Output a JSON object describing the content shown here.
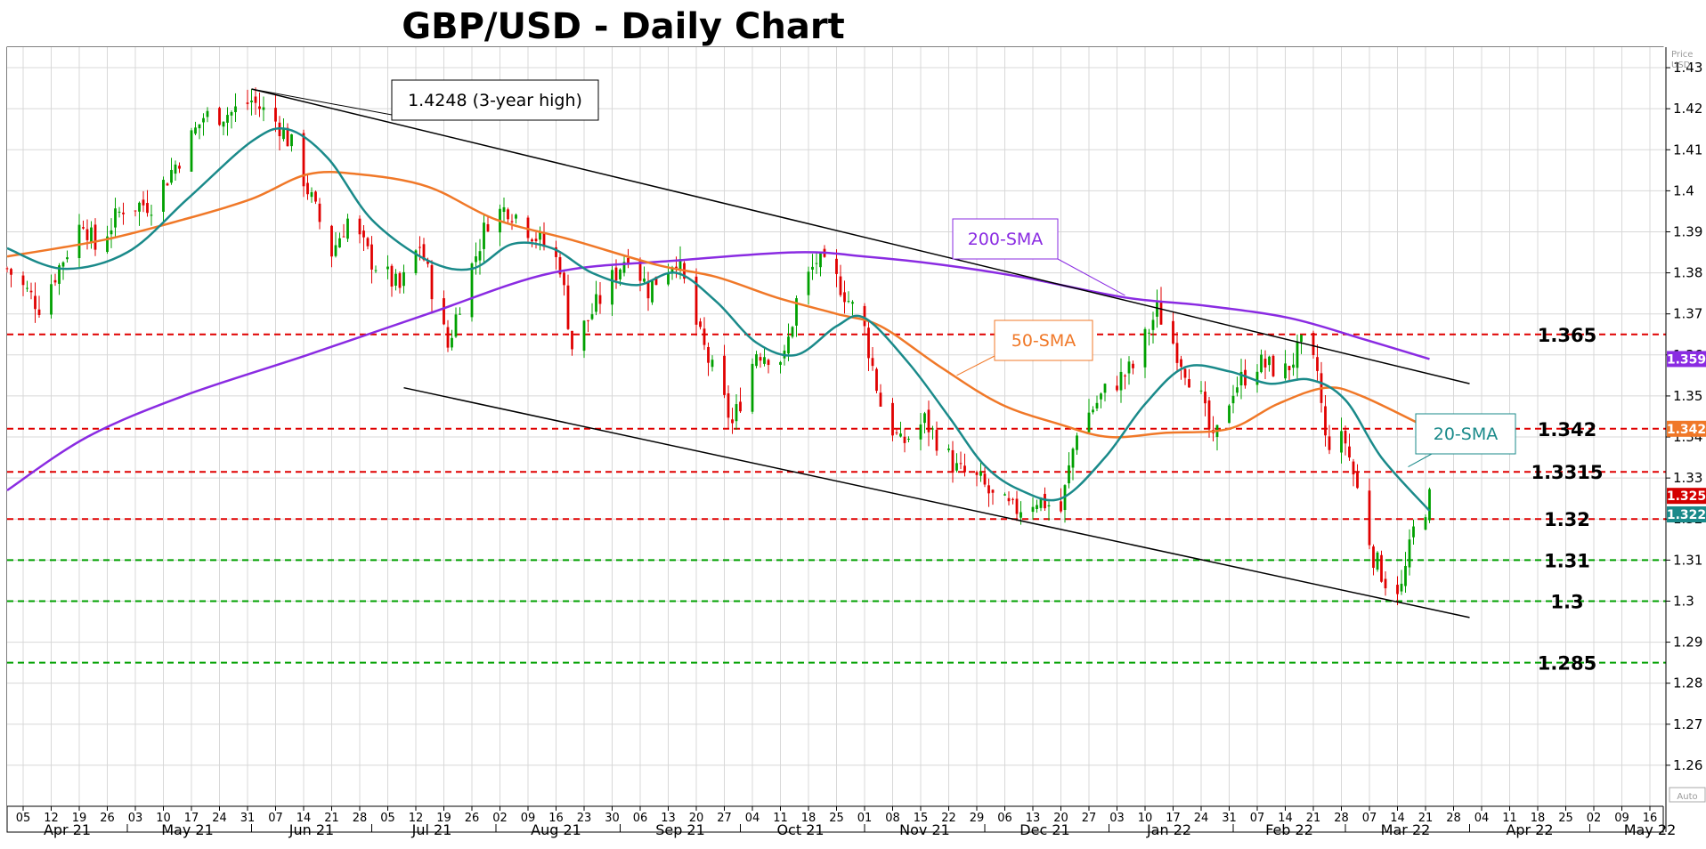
{
  "chart_data": {
    "type": "line",
    "title": "GBP/USD - Daily Chart",
    "y_unit": "Price USD",
    "auto_label": "Auto",
    "ylim": [
      1.25,
      1.435
    ],
    "xlim": [
      "2021-04-01",
      "2022-05-20"
    ],
    "grid": true,
    "y_ticks": [
      "1.26",
      "1.27",
      "1.28",
      "1.29",
      "1.3",
      "1.31",
      "1.32",
      "1.33",
      "1.34",
      "1.35",
      "1.36",
      "1.37",
      "1.38",
      "1.39",
      "1.4",
      "1.41",
      "1.42",
      "1.43"
    ],
    "x_ticks": [
      {
        "d": "2021-04-05",
        "l": "05"
      },
      {
        "d": "2021-04-12",
        "l": "12"
      },
      {
        "d": "2021-04-19",
        "l": "19"
      },
      {
        "d": "2021-04-26",
        "l": "26"
      },
      {
        "d": "2021-05-03",
        "l": "03"
      },
      {
        "d": "2021-05-10",
        "l": "10"
      },
      {
        "d": "2021-05-17",
        "l": "17"
      },
      {
        "d": "2021-05-24",
        "l": "24"
      },
      {
        "d": "2021-05-31",
        "l": "31"
      },
      {
        "d": "2021-06-07",
        "l": "07"
      },
      {
        "d": "2021-06-14",
        "l": "14"
      },
      {
        "d": "2021-06-21",
        "l": "21"
      },
      {
        "d": "2021-06-28",
        "l": "28"
      },
      {
        "d": "2021-07-05",
        "l": "05"
      },
      {
        "d": "2021-07-12",
        "l": "12"
      },
      {
        "d": "2021-07-19",
        "l": "19"
      },
      {
        "d": "2021-07-26",
        "l": "26"
      },
      {
        "d": "2021-08-02",
        "l": "02"
      },
      {
        "d": "2021-08-09",
        "l": "09"
      },
      {
        "d": "2021-08-16",
        "l": "16"
      },
      {
        "d": "2021-08-23",
        "l": "23"
      },
      {
        "d": "2021-08-30",
        "l": "30"
      },
      {
        "d": "2021-09-06",
        "l": "06"
      },
      {
        "d": "2021-09-13",
        "l": "13"
      },
      {
        "d": "2021-09-20",
        "l": "20"
      },
      {
        "d": "2021-09-27",
        "l": "27"
      },
      {
        "d": "2021-10-04",
        "l": "04"
      },
      {
        "d": "2021-10-11",
        "l": "11"
      },
      {
        "d": "2021-10-18",
        "l": "18"
      },
      {
        "d": "2021-10-25",
        "l": "25"
      },
      {
        "d": "2021-11-01",
        "l": "01"
      },
      {
        "d": "2021-11-08",
        "l": "08"
      },
      {
        "d": "2021-11-15",
        "l": "15"
      },
      {
        "d": "2021-11-22",
        "l": "22"
      },
      {
        "d": "2021-11-29",
        "l": "29"
      },
      {
        "d": "2021-12-06",
        "l": "06"
      },
      {
        "d": "2021-12-13",
        "l": "13"
      },
      {
        "d": "2021-12-20",
        "l": "20"
      },
      {
        "d": "2021-12-27",
        "l": "27"
      },
      {
        "d": "2022-01-03",
        "l": "03"
      },
      {
        "d": "2022-01-10",
        "l": "10"
      },
      {
        "d": "2022-01-17",
        "l": "17"
      },
      {
        "d": "2022-01-24",
        "l": "24"
      },
      {
        "d": "2022-01-31",
        "l": "31"
      },
      {
        "d": "2022-02-07",
        "l": "07"
      },
      {
        "d": "2022-02-14",
        "l": "14"
      },
      {
        "d": "2022-02-21",
        "l": "21"
      },
      {
        "d": "2022-02-28",
        "l": "28"
      },
      {
        "d": "2022-03-07",
        "l": "07"
      },
      {
        "d": "2022-03-14",
        "l": "14"
      },
      {
        "d": "2022-03-21",
        "l": "21"
      },
      {
        "d": "2022-03-28",
        "l": "28"
      },
      {
        "d": "2022-04-04",
        "l": "04"
      },
      {
        "d": "2022-04-11",
        "l": "11"
      },
      {
        "d": "2022-04-18",
        "l": "18"
      },
      {
        "d": "2022-04-25",
        "l": "25"
      },
      {
        "d": "2022-05-02",
        "l": "02"
      },
      {
        "d": "2022-05-09",
        "l": "09"
      },
      {
        "d": "2022-05-16",
        "l": "16"
      }
    ],
    "month_labels": [
      {
        "d": "2021-04-16",
        "l": "Apr 21"
      },
      {
        "d": "2021-05-16",
        "l": "May 21"
      },
      {
        "d": "2021-06-16",
        "l": "Jun 21"
      },
      {
        "d": "2021-07-16",
        "l": "Jul 21"
      },
      {
        "d": "2021-08-16",
        "l": "Aug 21"
      },
      {
        "d": "2021-09-16",
        "l": "Sep 21"
      },
      {
        "d": "2021-10-16",
        "l": "Oct 21"
      },
      {
        "d": "2021-11-16",
        "l": "Nov 21"
      },
      {
        "d": "2021-12-16",
        "l": "Dec 21"
      },
      {
        "d": "2022-01-16",
        "l": "Jan 22"
      },
      {
        "d": "2022-02-15",
        "l": "Feb 22"
      },
      {
        "d": "2022-03-16",
        "l": "Mar 22"
      },
      {
        "d": "2022-04-16",
        "l": "Apr 22"
      },
      {
        "d": "2022-05-16",
        "l": "May 22"
      }
    ],
    "month_separators": [
      "2021-05-01",
      "2021-06-01",
      "2021-07-01",
      "2021-08-01",
      "2021-09-01",
      "2021-10-01",
      "2021-11-01",
      "2021-12-01",
      "2022-01-01",
      "2022-02-01",
      "2022-03-01",
      "2022-04-01",
      "2022-05-01"
    ],
    "close_path": [
      [
        "2021-04-01",
        1.381
      ],
      [
        "2021-04-09",
        1.372
      ],
      [
        "2021-04-20",
        1.393
      ],
      [
        "2021-04-23",
        1.386
      ],
      [
        "2021-04-30",
        1.396
      ],
      [
        "2021-05-07",
        1.397
      ],
      [
        "2021-05-14",
        1.408
      ],
      [
        "2021-05-20",
        1.418
      ],
      [
        "2021-05-27",
        1.419
      ],
      [
        "2021-06-01",
        1.422
      ],
      [
        "2021-06-08",
        1.416
      ],
      [
        "2021-06-11",
        1.411
      ],
      [
        "2021-06-17",
        1.395
      ],
      [
        "2021-06-21",
        1.385
      ],
      [
        "2021-06-25",
        1.393
      ],
      [
        "2021-07-01",
        1.383
      ],
      [
        "2021-07-08",
        1.376
      ],
      [
        "2021-07-13",
        1.387
      ],
      [
        "2021-07-20",
        1.362
      ],
      [
        "2021-07-23",
        1.373
      ],
      [
        "2021-07-30",
        1.393
      ],
      [
        "2021-08-04",
        1.396
      ],
      [
        "2021-08-10",
        1.39
      ],
      [
        "2021-08-17",
        1.382
      ],
      [
        "2021-08-20",
        1.362
      ],
      [
        "2021-08-26",
        1.372
      ],
      [
        "2021-09-03",
        1.385
      ],
      [
        "2021-09-08",
        1.376
      ],
      [
        "2021-09-15",
        1.384
      ],
      [
        "2021-09-21",
        1.364
      ],
      [
        "2021-09-29",
        1.343
      ],
      [
        "2021-10-05",
        1.361
      ],
      [
        "2021-10-12",
        1.359
      ],
      [
        "2021-10-15",
        1.373
      ],
      [
        "2021-10-20",
        1.383
      ],
      [
        "2021-10-26",
        1.377
      ],
      [
        "2021-11-01",
        1.366
      ],
      [
        "2021-11-05",
        1.348
      ],
      [
        "2021-11-10",
        1.338
      ],
      [
        "2021-11-16",
        1.344
      ],
      [
        "2021-11-24",
        1.332
      ],
      [
        "2021-11-30",
        1.329
      ],
      [
        "2021-12-03",
        1.325
      ],
      [
        "2021-12-08",
        1.322
      ],
      [
        "2021-12-14",
        1.325
      ],
      [
        "2021-12-20",
        1.322
      ],
      [
        "2021-12-24",
        1.342
      ],
      [
        "2021-12-31",
        1.351
      ],
      [
        "2022-01-07",
        1.357
      ],
      [
        "2022-01-13",
        1.371
      ],
      [
        "2022-01-18",
        1.361
      ],
      [
        "2022-01-24",
        1.349
      ],
      [
        "2022-01-27",
        1.338
      ],
      [
        "2022-02-01",
        1.352
      ],
      [
        "2022-02-07",
        1.358
      ],
      [
        "2022-02-14",
        1.356
      ],
      [
        "2022-02-18",
        1.362
      ],
      [
        "2022-02-22",
        1.356
      ],
      [
        "2022-02-24",
        1.339
      ],
      [
        "2022-03-01",
        1.339
      ],
      [
        "2022-03-04",
        1.327
      ],
      [
        "2022-03-08",
        1.311
      ],
      [
        "2022-03-11",
        1.305
      ],
      [
        "2022-03-15",
        1.303
      ],
      [
        "2022-03-18",
        1.317
      ],
      [
        "2022-03-22",
        1.325
      ]
    ],
    "sma20": [
      [
        "2021-04-01",
        1.386
      ],
      [
        "2021-04-15",
        1.381
      ],
      [
        "2021-05-01",
        1.385
      ],
      [
        "2021-05-16",
        1.398
      ],
      [
        "2021-06-01",
        1.412
      ],
      [
        "2021-06-10",
        1.415
      ],
      [
        "2021-06-20",
        1.408
      ],
      [
        "2021-07-01",
        1.393
      ],
      [
        "2021-07-15",
        1.383
      ],
      [
        "2021-07-26",
        1.381
      ],
      [
        "2021-08-05",
        1.387
      ],
      [
        "2021-08-15",
        1.386
      ],
      [
        "2021-08-25",
        1.38
      ],
      [
        "2021-09-05",
        1.377
      ],
      [
        "2021-09-15",
        1.38
      ],
      [
        "2021-09-25",
        1.373
      ],
      [
        "2021-10-05",
        1.363
      ],
      [
        "2021-10-15",
        1.36
      ],
      [
        "2021-10-25",
        1.367
      ],
      [
        "2021-11-01",
        1.369
      ],
      [
        "2021-11-12",
        1.358
      ],
      [
        "2021-11-22",
        1.345
      ],
      [
        "2021-12-01",
        1.333
      ],
      [
        "2021-12-10",
        1.327
      ],
      [
        "2021-12-20",
        1.325
      ],
      [
        "2021-12-31",
        1.335
      ],
      [
        "2022-01-10",
        1.348
      ],
      [
        "2022-01-20",
        1.357
      ],
      [
        "2022-01-31",
        1.356
      ],
      [
        "2022-02-10",
        1.353
      ],
      [
        "2022-02-20",
        1.354
      ],
      [
        "2022-03-01",
        1.349
      ],
      [
        "2022-03-10",
        1.335
      ],
      [
        "2022-03-22",
        1.322
      ]
    ],
    "sma50": [
      [
        "2021-04-01",
        1.384
      ],
      [
        "2021-04-25",
        1.388
      ],
      [
        "2021-05-15",
        1.393
      ],
      [
        "2021-06-01",
        1.398
      ],
      [
        "2021-06-15",
        1.404
      ],
      [
        "2021-06-28",
        1.404
      ],
      [
        "2021-07-15",
        1.401
      ],
      [
        "2021-08-01",
        1.393
      ],
      [
        "2021-08-20",
        1.388
      ],
      [
        "2021-09-10",
        1.382
      ],
      [
        "2021-09-25",
        1.379
      ],
      [
        "2021-10-10",
        1.374
      ],
      [
        "2021-10-25",
        1.37
      ],
      [
        "2021-11-05",
        1.367
      ],
      [
        "2021-11-20",
        1.357
      ],
      [
        "2021-12-05",
        1.348
      ],
      [
        "2021-12-20",
        1.343
      ],
      [
        "2022-01-01",
        1.34
      ],
      [
        "2022-01-15",
        1.341
      ],
      [
        "2022-01-31",
        1.342
      ],
      [
        "2022-02-12",
        1.348
      ],
      [
        "2022-02-24",
        1.352
      ],
      [
        "2022-03-05",
        1.35
      ],
      [
        "2022-03-22",
        1.342
      ]
    ],
    "sma200": [
      [
        "2021-04-01",
        1.327
      ],
      [
        "2021-04-21",
        1.34
      ],
      [
        "2021-05-15",
        1.35
      ],
      [
        "2021-06-15",
        1.36
      ],
      [
        "2021-07-15",
        1.37
      ],
      [
        "2021-08-15",
        1.38
      ],
      [
        "2021-09-15",
        1.383
      ],
      [
        "2021-10-15",
        1.385
      ],
      [
        "2021-11-01",
        1.384
      ],
      [
        "2021-11-20",
        1.382
      ],
      [
        "2021-12-10",
        1.379
      ],
      [
        "2022-01-05",
        1.374
      ],
      [
        "2022-01-25",
        1.372
      ],
      [
        "2022-02-15",
        1.369
      ],
      [
        "2022-03-05",
        1.364
      ],
      [
        "2022-03-22",
        1.359
      ]
    ],
    "levels": [
      {
        "value": 1.365,
        "label": "1.365",
        "color": "#e00000"
      },
      {
        "value": 1.342,
        "label": "1.342",
        "color": "#e00000"
      },
      {
        "value": 1.3315,
        "label": "1.3315",
        "color": "#e00000"
      },
      {
        "value": 1.32,
        "label": "1.32",
        "color": "#e00000"
      },
      {
        "value": 1.31,
        "label": "1.31",
        "color": "#00a000"
      },
      {
        "value": 1.3,
        "label": "1.3",
        "color": "#00a000"
      },
      {
        "value": 1.285,
        "label": "1.285",
        "color": "#00a000"
      }
    ],
    "trendlines": [
      {
        "x1": "2021-06-01",
        "y1": 1.4248,
        "x2": "2022-04-01",
        "y2": 1.353
      },
      {
        "x1": "2021-07-09",
        "y1": 1.352,
        "x2": "2022-04-01",
        "y2": 1.296
      }
    ],
    "annotations": [
      {
        "text": "1.4248 (3-year high)",
        "color": "#000000"
      },
      {
        "text": "200-SMA",
        "color": "#8a2be2"
      },
      {
        "text": "50-SMA",
        "color": "#f07828"
      },
      {
        "text": "20-SMA",
        "color": "#1a8a8a"
      }
    ],
    "badges": [
      {
        "value": 1.359,
        "label": "1.359",
        "color": "#8a2be2"
      },
      {
        "value": 1.342,
        "label": "1.342",
        "color": "#f07828"
      },
      {
        "value": 1.325,
        "label": "1.325",
        "color": "#d40000"
      },
      {
        "value": 1.322,
        "label": "1.322",
        "color": "#1a8a8a"
      }
    ],
    "colors": {
      "up": "#00a000",
      "down": "#e00000",
      "sma20": "#1a8a8a",
      "sma50": "#f07828",
      "sma200": "#8a2be2",
      "grid": "#d8d8d8"
    }
  }
}
